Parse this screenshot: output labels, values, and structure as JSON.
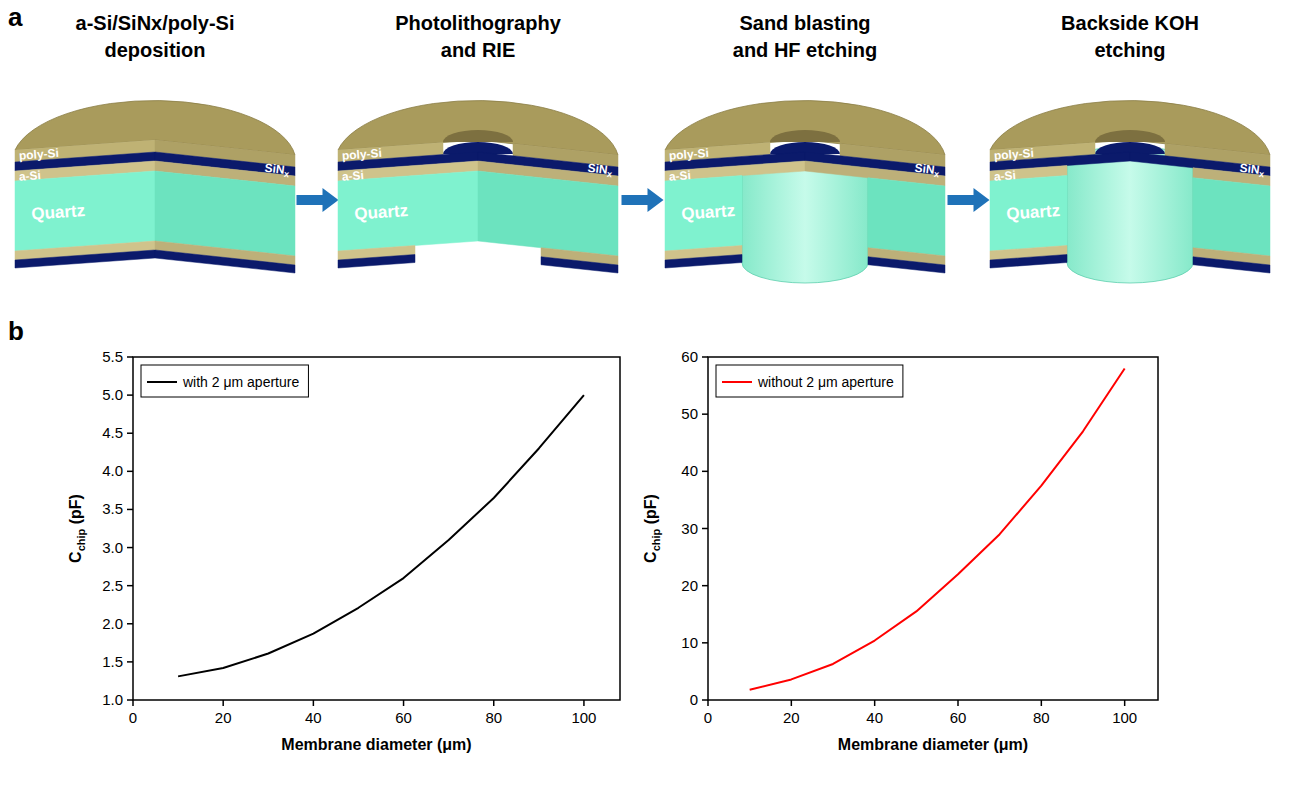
{
  "panel_labels": [
    "a",
    "b"
  ],
  "diagram": {
    "steps": [
      {
        "title": [
          "a-Si/SiNx/poly-Si",
          "deposition"
        ]
      },
      {
        "title": [
          "Photolithography",
          "and RIE"
        ]
      },
      {
        "title": [
          "Sand blasting",
          "and HF etching"
        ]
      },
      {
        "title": [
          "Backside KOH",
          "etching"
        ]
      }
    ],
    "layers": {
      "poly_si": "poly-Si",
      "a_si": "a-Si",
      "sinx": {
        "base": "SiN",
        "sub": "x"
      },
      "quartz": "Quartz"
    }
  },
  "chart_data": [
    {
      "type": "line",
      "x": [
        10,
        20,
        30,
        40,
        50,
        60,
        70,
        80,
        90,
        100
      ],
      "series": [
        {
          "name": "with 2 μm aperture",
          "color": "#000000",
          "values": [
            1.31,
            1.42,
            1.61,
            1.87,
            2.21,
            2.6,
            3.1,
            3.65,
            4.3,
            5.0
          ]
        }
      ],
      "xlabel": "Membrane diameter (μm)",
      "ylabel": {
        "base": "C",
        "sub": "chip",
        "rest": " (pF)"
      },
      "xlim": [
        0,
        108
      ],
      "ylim": [
        1.0,
        5.5
      ],
      "xticks": [
        0,
        20,
        40,
        60,
        80,
        100
      ],
      "yticks": [
        {
          "value": 1,
          "label": "1.0"
        },
        1.5,
        {
          "value": 2,
          "label": "2.0"
        },
        2.5,
        {
          "value": 3,
          "label": "3.0"
        },
        3.5,
        {
          "value": 4,
          "label": "4.0"
        },
        4.5,
        {
          "value": 5,
          "label": "5.0"
        },
        5.5
      ],
      "grid": false,
      "legend": "upper left"
    },
    {
      "type": "line",
      "x": [
        10,
        20,
        30,
        40,
        50,
        60,
        70,
        80,
        90,
        100
      ],
      "series": [
        {
          "name": "without 2 μm aperture",
          "color": "#ff0000",
          "values": [
            1.8,
            3.6,
            6.3,
            10.4,
            15.5,
            22,
            29,
            37.5,
            47,
            58
          ]
        }
      ],
      "xlabel": "Membrane diameter (μm)",
      "ylabel": {
        "base": "C",
        "sub": "chip",
        "rest": " (pF)"
      },
      "xlim": [
        0,
        108
      ],
      "ylim": [
        0,
        60
      ],
      "xticks": [
        0,
        20,
        40,
        60,
        80,
        100
      ],
      "yticks": [
        0,
        10,
        20,
        30,
        40,
        50,
        60
      ],
      "grid": false,
      "legend": "upper left"
    }
  ]
}
